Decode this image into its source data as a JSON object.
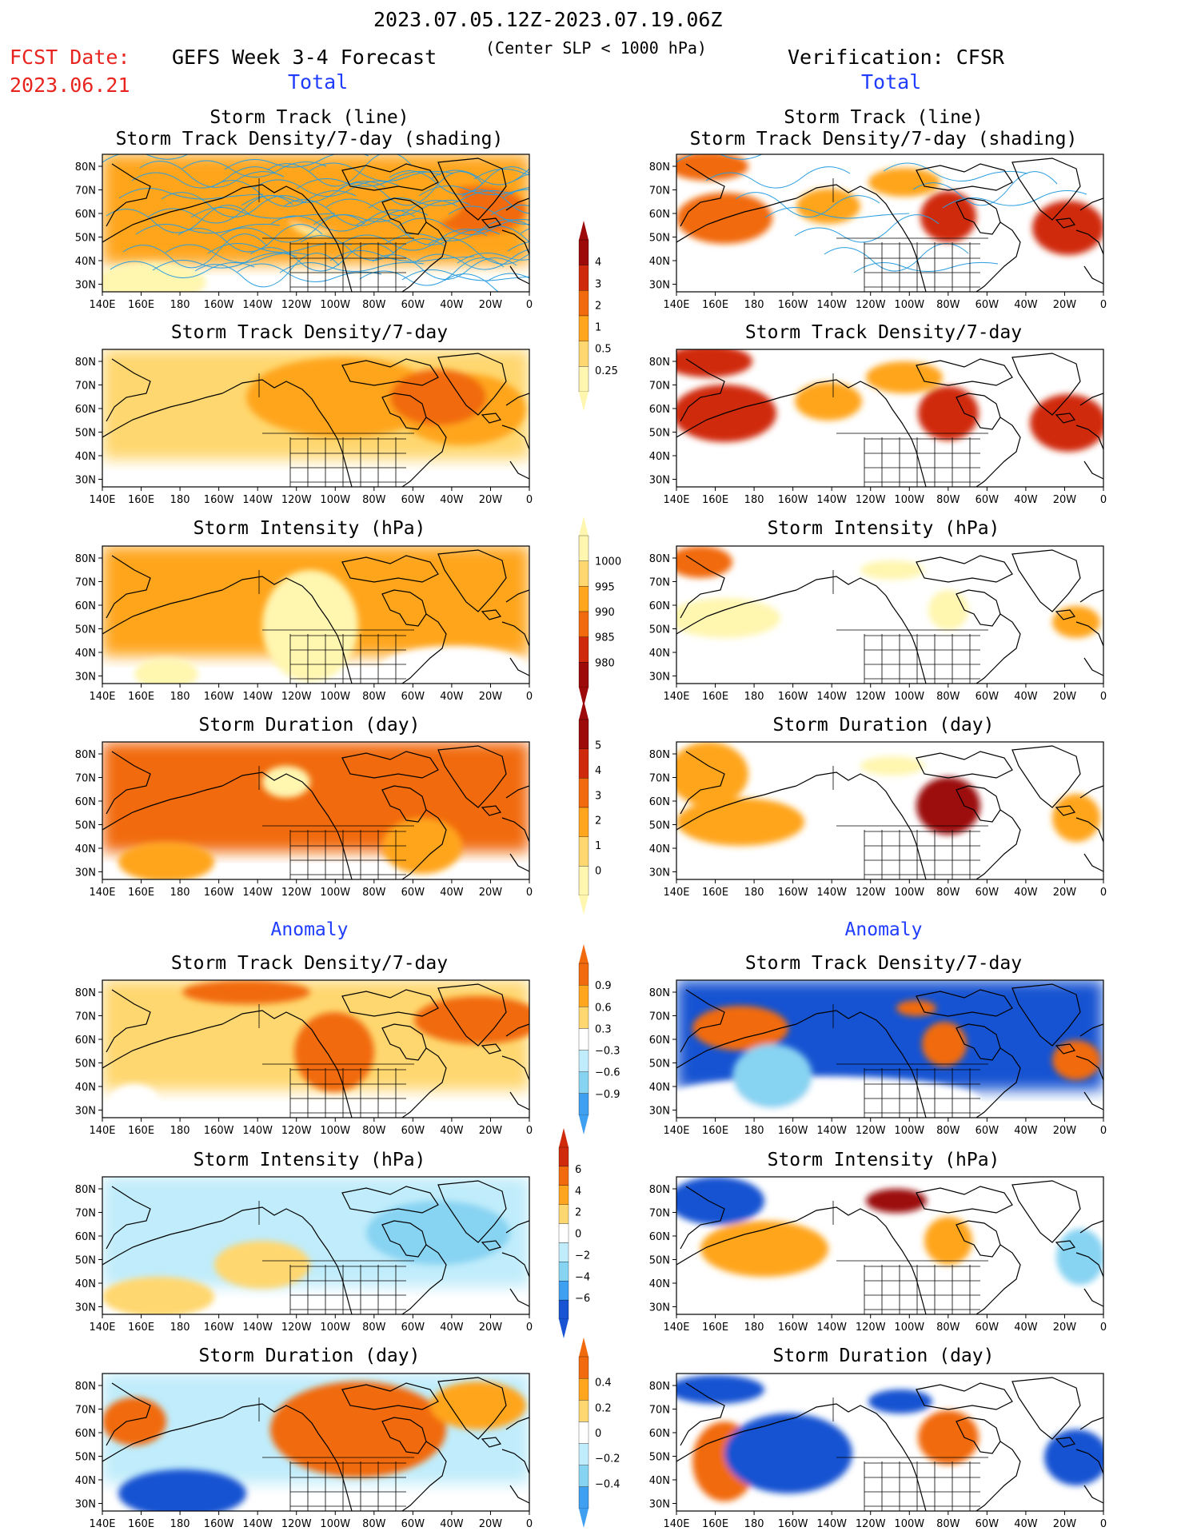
{
  "header": {
    "date_range": "2023.07.05.12Z-2023.07.19.06Z",
    "subtitle": "(Center SLP < 1000 hPa)",
    "fcst_label": "FCST Date:",
    "fcst_date": "2023.06.21",
    "left_title": "GEFS Week 3-4 Forecast",
    "right_title": "Verification: CFSR",
    "total_left": "Total",
    "total_right": "Total",
    "anomaly_left": "Anomaly",
    "anomaly_right": "Anomaly"
  },
  "axes": {
    "x_ticks": [
      "140E",
      "160E",
      "180",
      "160W",
      "140W",
      "120W",
      "100W",
      "80W",
      "60W",
      "40W",
      "20W",
      "0"
    ],
    "y_ticks": [
      "80N",
      "70N",
      "60N",
      "50N",
      "40N",
      "30N"
    ]
  },
  "panels": {
    "p1_line1": "Storm Track (line)",
    "p1_line2": "Storm Track Density/7-day (shading)",
    "density": "Storm Track Density/7-day",
    "intensity": "Storm Intensity (hPa)",
    "duration": "Storm Duration (day)"
  },
  "colorbars": {
    "density_total": [
      "4",
      "3",
      "2",
      "1",
      "0.5",
      "0.25"
    ],
    "intensity_total": [
      "1000",
      "995",
      "990",
      "985",
      "980"
    ],
    "duration_total": [
      "5",
      "4",
      "3",
      "2",
      "1",
      "0"
    ],
    "density_anom": [
      "0.9",
      "0.6",
      "0.3",
      "−0.3",
      "−0.6",
      "−0.9"
    ],
    "intensity_anom": [
      "6",
      "4",
      "2",
      "0",
      "−2",
      "−4",
      "−6"
    ],
    "duration_anom": [
      "0.4",
      "0.2",
      "0",
      "−0.2",
      "−0.4"
    ]
  },
  "colors": {
    "warm": [
      "#fff6b0",
      "#ffd770",
      "#ffa51e",
      "#f16a0e",
      "#d02a0c",
      "#9c0a0a"
    ],
    "cool": [
      "#c0ecfb",
      "#87d3f2",
      "#3f9ff0",
      "#1753d2"
    ],
    "track_line": "#2a9ee0",
    "title_red": "#e8241f",
    "label_blue": "#1f3cff"
  }
}
